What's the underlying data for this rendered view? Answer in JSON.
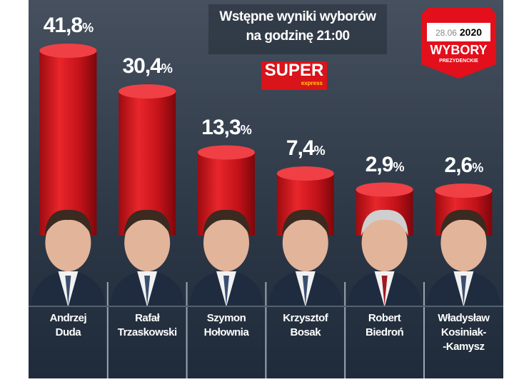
{
  "header": {
    "title_line1": "Wstępne wyniki wyborów",
    "title_line2": "na godzinę 21:00"
  },
  "logo": {
    "super": "SUPER",
    "express": "express"
  },
  "badge": {
    "date": "28.06",
    "year": "2020",
    "title": "WYBORY",
    "subtitle": "PREZYDENCKIE"
  },
  "colors": {
    "bar": "#d8161c",
    "background": "#2c3746",
    "badge": "#e30f1b"
  },
  "chart_data": {
    "type": "bar",
    "style": "3d-cylinder",
    "categories": [
      "Andrzej Duda",
      "Rafał Trzaskowski",
      "Szymon Hołownia",
      "Krzysztof Bosak",
      "Robert Biedroń",
      "Władysław Kosiniak-Kamysz"
    ],
    "values": [
      41.8,
      30.4,
      13.3,
      7.4,
      2.9,
      2.6
    ],
    "value_labels": [
      "41,8",
      "30,4",
      "13,3",
      "7,4",
      "2,9",
      "2,6"
    ],
    "unit": "%",
    "names": [
      [
        "Andrzej",
        "Duda"
      ],
      [
        "Rafał",
        "Trzaskowski"
      ],
      [
        "Szymon",
        "Hołownia"
      ],
      [
        "Krzysztof",
        "Bosak"
      ],
      [
        "Robert",
        "Biedroń"
      ],
      [
        "Władysław",
        "Kosiniak-",
        "-Kamysz"
      ]
    ]
  }
}
